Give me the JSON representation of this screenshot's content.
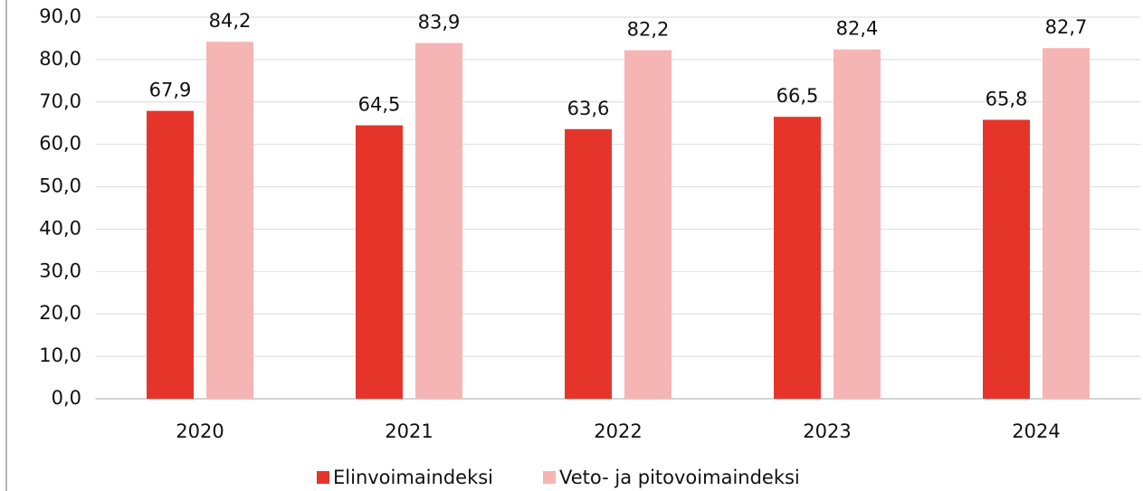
{
  "chart_data": {
    "type": "bar",
    "categories": [
      "2020",
      "2021",
      "2022",
      "2023",
      "2024"
    ],
    "series": [
      {
        "name": "Elinvoimaindeksi",
        "color": "#e5352b",
        "values": [
          67.9,
          64.5,
          63.6,
          66.5,
          65.8
        ],
        "value_labels": [
          "67,9",
          "64,5",
          "63,6",
          "66,5",
          "65,8"
        ]
      },
      {
        "name": "Veto- ja pitovoimaindeksi",
        "color": "#f5b5b4",
        "values": [
          84.2,
          83.9,
          82.2,
          82.4,
          82.7
        ],
        "value_labels": [
          "84,2",
          "83,9",
          "82,2",
          "82,4",
          "82,7"
        ]
      }
    ],
    "ylim": [
      0,
      90
    ],
    "yticks": [
      {
        "value": 0,
        "label": "0,0"
      },
      {
        "value": 10,
        "label": "10,0"
      },
      {
        "value": 20,
        "label": "20,0"
      },
      {
        "value": 30,
        "label": "30,0"
      },
      {
        "value": 40,
        "label": "40,0"
      },
      {
        "value": 50,
        "label": "50,0"
      },
      {
        "value": 60,
        "label": "60,0"
      },
      {
        "value": 70,
        "label": "70,0"
      },
      {
        "value": 80,
        "label": "80,0"
      },
      {
        "value": 90,
        "label": "90,0"
      }
    ],
    "grid": true,
    "legend": "bottom"
  }
}
